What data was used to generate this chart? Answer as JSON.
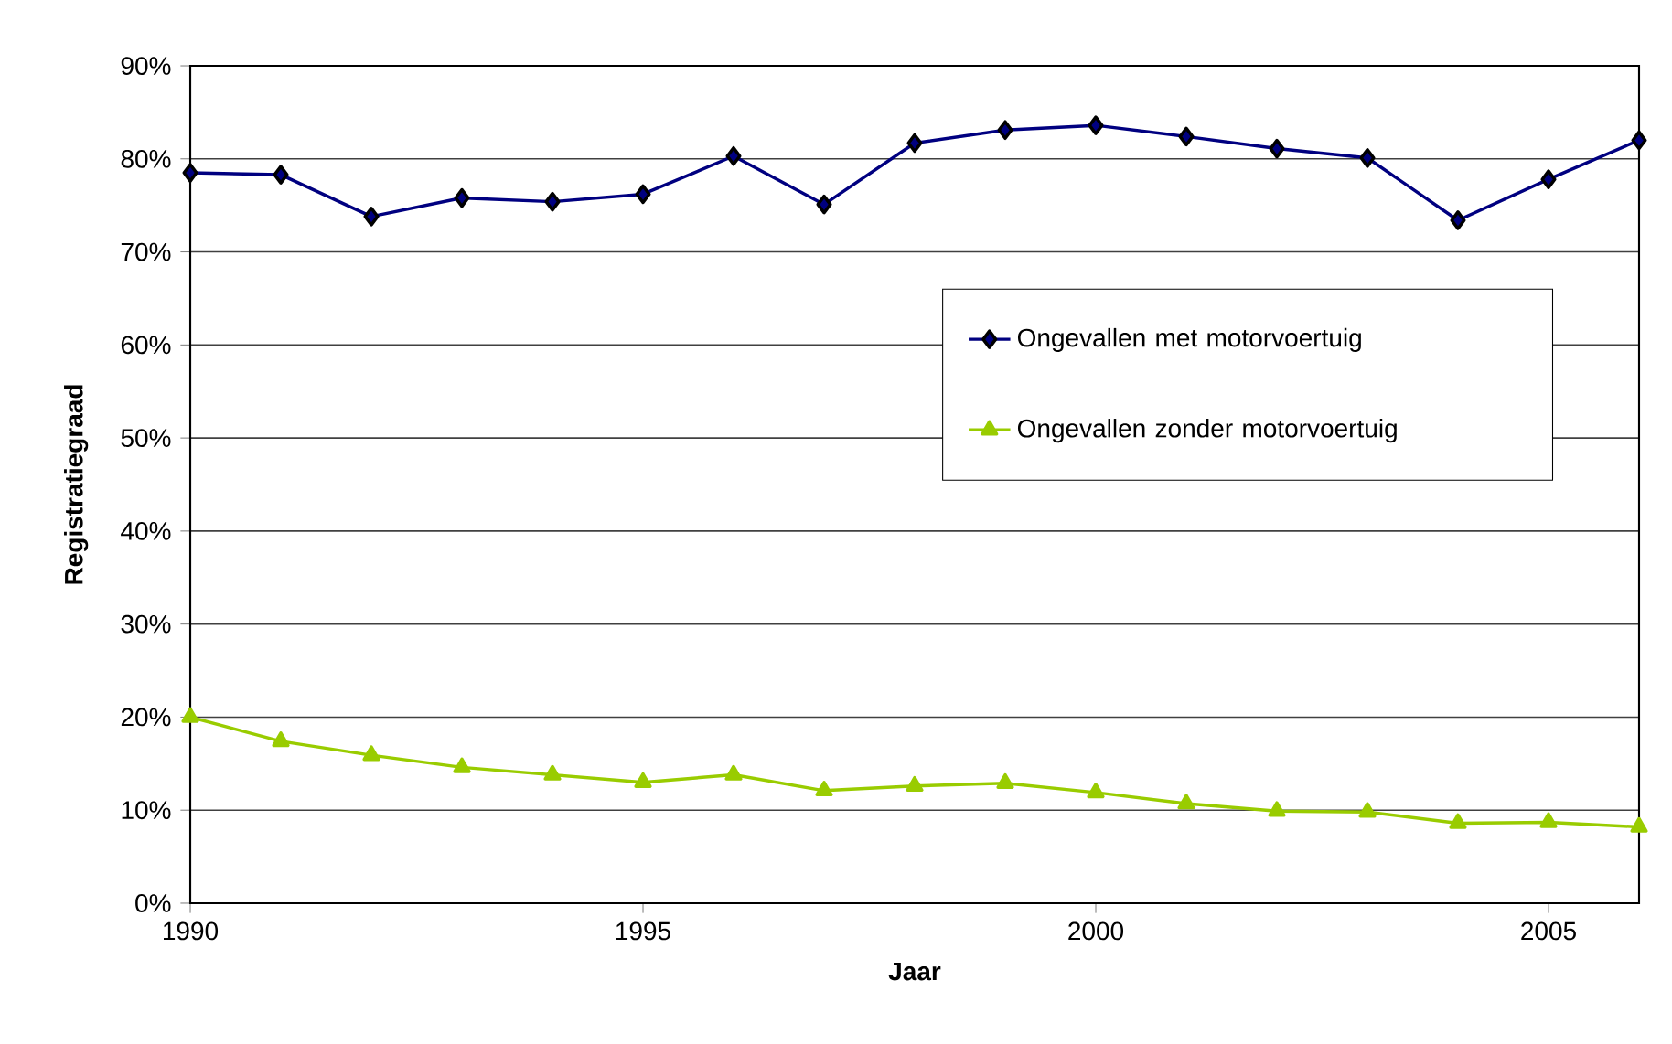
{
  "chart_data": {
    "type": "line",
    "xlabel": "Jaar",
    "ylabel": "Registratiegraad",
    "x": [
      1990,
      1991,
      1992,
      1993,
      1994,
      1995,
      1996,
      1997,
      1998,
      1999,
      2000,
      2001,
      2002,
      2003,
      2004,
      2005,
      2006
    ],
    "series": [
      {
        "name": "Ongevallen met motorvoertuig",
        "color": "#000080",
        "marker": "diamond",
        "values": [
          78.5,
          78.3,
          73.8,
          75.8,
          75.4,
          76.2,
          80.3,
          75.1,
          81.7,
          83.1,
          83.6,
          82.4,
          81.1,
          80.1,
          73.4,
          77.8,
          82.0
        ]
      },
      {
        "name": "Ongevallen zonder motorvoertuig",
        "color": "#99cc00",
        "marker": "triangle",
        "values": [
          20.0,
          17.4,
          15.9,
          14.6,
          13.8,
          13.0,
          13.8,
          12.1,
          12.6,
          12.9,
          11.9,
          10.7,
          9.9,
          9.8,
          8.6,
          8.7,
          8.2
        ]
      }
    ],
    "xlim": [
      1990,
      2006
    ],
    "xticks": [
      1990,
      1995,
      2000,
      2005
    ],
    "ylim": [
      0,
      90
    ],
    "yticks": [
      {
        "value": 0,
        "label": "0%"
      },
      {
        "value": 10,
        "label": "10%"
      },
      {
        "value": 20,
        "label": "20%"
      },
      {
        "value": 30,
        "label": "30%"
      },
      {
        "value": 40,
        "label": "40%"
      },
      {
        "value": 50,
        "label": "50%"
      },
      {
        "value": 60,
        "label": "60%"
      },
      {
        "value": 70,
        "label": "70%"
      },
      {
        "value": 80,
        "label": "80%"
      },
      {
        "value": 90,
        "label": "90%"
      }
    ],
    "grid": "y",
    "legend": "right",
    "line_style": "solid"
  }
}
